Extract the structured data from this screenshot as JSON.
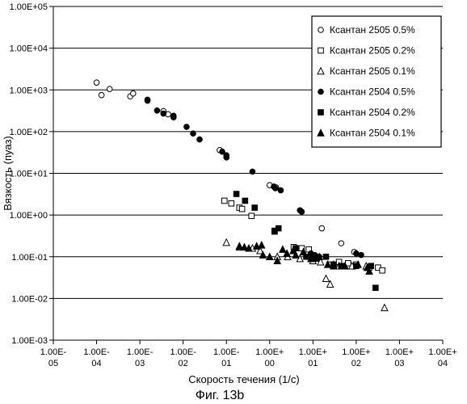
{
  "figure": {
    "caption": "Фиг. 13b"
  },
  "chart_data": {
    "type": "scatter",
    "title": "",
    "xlabel": "Скорость течения (1/с)",
    "ylabel": "Вязкость (пуаз)",
    "xscale": "log",
    "yscale": "log",
    "xlim": [
      1e-05,
      10000
    ],
    "ylim": [
      0.001,
      100000
    ],
    "grid": "horizontal",
    "legend_position": "top-right",
    "x_tick_labels": [
      [
        "1.00E-",
        "05"
      ],
      [
        "1.00E-",
        "04"
      ],
      [
        "1.00E-",
        "03"
      ],
      [
        "1.00E-",
        "02"
      ],
      [
        "1.00E-",
        "01"
      ],
      [
        "1.00E+",
        "00"
      ],
      [
        "1.00E+",
        "01"
      ],
      [
        "1.00E+",
        "02"
      ],
      [
        "1.00E+",
        "03"
      ],
      [
        "1.00E+",
        "04"
      ]
    ],
    "y_tick_labels": [
      "1.00E-03",
      "1.00E-02",
      "1.00E-01",
      "1.00E+00",
      "1.00E+01",
      "1.00E+02",
      "1.00E+03",
      "1.00E+04",
      "1.00E+05"
    ],
    "series": [
      {
        "name": "Ксантан  2505 0.5%",
        "marker": "circle",
        "filled": false,
        "points": [
          [
            0.0001,
            1500
          ],
          [
            0.00013,
            750
          ],
          [
            0.0002,
            1050
          ],
          [
            0.0006,
            700
          ],
          [
            0.0007,
            820
          ],
          [
            0.0035,
            310
          ],
          [
            0.0045,
            260
          ],
          [
            0.07,
            36
          ],
          [
            1.0,
            5.2
          ],
          [
            1.4,
            4.6
          ],
          [
            16,
            0.48
          ],
          [
            45,
            0.21
          ],
          [
            90,
            0.13
          ]
        ]
      },
      {
        "name": "Ксантан  2505 0.2%",
        "marker": "square",
        "filled": false,
        "points": [
          [
            0.09,
            2.2
          ],
          [
            0.13,
            1.9
          ],
          [
            0.2,
            1.5
          ],
          [
            0.23,
            1.4
          ],
          [
            0.38,
            0.95
          ],
          [
            1.3,
            0.4
          ],
          [
            3.6,
            0.17
          ],
          [
            5.5,
            0.16
          ],
          [
            8,
            0.15
          ],
          [
            24,
            0.065
          ],
          [
            40,
            0.075
          ],
          [
            65,
            0.07
          ],
          [
            100,
            0.065
          ],
          [
            200,
            0.055
          ],
          [
            320,
            0.055
          ],
          [
            400,
            0.047
          ]
        ]
      },
      {
        "name": "Ксантан  2505 0.1%",
        "marker": "triangle",
        "filled": false,
        "points": [
          [
            0.1,
            0.22
          ],
          [
            0.2,
            0.17
          ],
          [
            0.4,
            0.16
          ],
          [
            0.6,
            0.14
          ],
          [
            1.5,
            0.1
          ],
          [
            2.6,
            0.1
          ],
          [
            5,
            0.09
          ],
          [
            10,
            0.08
          ],
          [
            15,
            0.075
          ],
          [
            20,
            0.03
          ],
          [
            25,
            0.022
          ],
          [
            30,
            0.065
          ],
          [
            40,
            0.06
          ],
          [
            80,
            0.06
          ],
          [
            170,
            0.06
          ],
          [
            450,
            0.006
          ]
        ]
      },
      {
        "name": "Ксантан 2504 0.5%",
        "marker": "circle",
        "filled": true,
        "points": [
          [
            0.0015,
            580
          ],
          [
            0.0015,
            550
          ],
          [
            0.0025,
            320
          ],
          [
            0.0035,
            270
          ],
          [
            0.006,
            240
          ],
          [
            0.006,
            220
          ],
          [
            0.012,
            130
          ],
          [
            0.017,
            90
          ],
          [
            0.024,
            65
          ],
          [
            0.08,
            33
          ],
          [
            0.1,
            27
          ],
          [
            0.1,
            24
          ],
          [
            0.4,
            11
          ],
          [
            1.25,
            4.8
          ],
          [
            1.35,
            4.4
          ],
          [
            1.8,
            3.9
          ],
          [
            5,
            1.3
          ],
          [
            5.5,
            1.2
          ],
          [
            9,
            0.12
          ],
          [
            11,
            0.11
          ],
          [
            14,
            0.1
          ],
          [
            100,
            0.12
          ],
          [
            130,
            0.11
          ]
        ]
      },
      {
        "name": "Ксантан 2504 0.2%",
        "marker": "square",
        "filled": true,
        "points": [
          [
            0.17,
            3.2
          ],
          [
            0.27,
            2.2
          ],
          [
            0.45,
            1.5
          ],
          [
            1.3,
            0.42
          ],
          [
            1.6,
            0.48
          ],
          [
            4,
            0.16
          ],
          [
            7,
            0.1
          ],
          [
            12,
            0.09
          ],
          [
            20,
            0.1
          ],
          [
            30,
            0.065
          ],
          [
            45,
            0.06
          ],
          [
            100,
            0.06
          ],
          [
            220,
            0.06
          ],
          [
            280,
            0.018
          ]
        ]
      },
      {
        "name": "Ксантан 2504 0.1%",
        "marker": "triangle",
        "filled": true,
        "points": [
          [
            0.2,
            0.18
          ],
          [
            0.26,
            0.17
          ],
          [
            0.33,
            0.16
          ],
          [
            0.5,
            0.18
          ],
          [
            0.65,
            0.19
          ],
          [
            0.7,
            0.11
          ],
          [
            1.0,
            0.1
          ],
          [
            1.5,
            0.08
          ],
          [
            2,
            0.15
          ],
          [
            2.5,
            0.12
          ],
          [
            3.5,
            0.14
          ],
          [
            4,
            0.11
          ],
          [
            6,
            0.13
          ],
          [
            9,
            0.09
          ],
          [
            14,
            0.1
          ],
          [
            22,
            0.065
          ],
          [
            30,
            0.06
          ],
          [
            55,
            0.06
          ],
          [
            110,
            0.065
          ],
          [
            180,
            0.055
          ],
          [
            200,
            0.045
          ]
        ]
      }
    ]
  }
}
